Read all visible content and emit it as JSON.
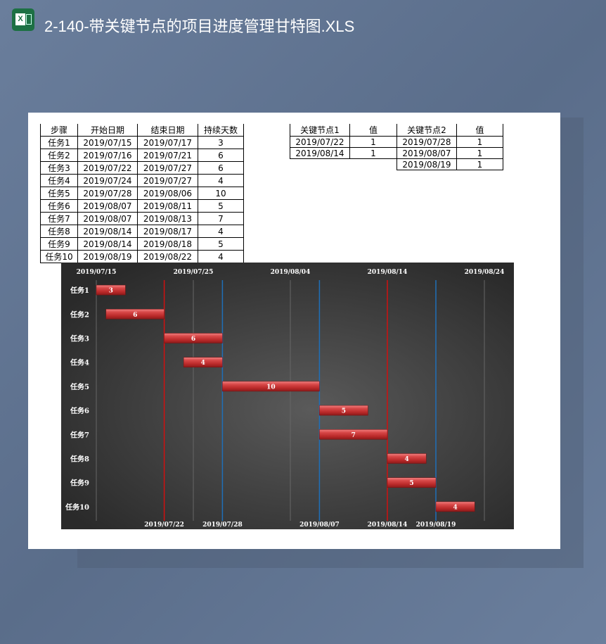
{
  "window": {
    "title": "2-140-带关键节点的项目进度管理甘特图.XLS",
    "app_icon": "excel-icon",
    "app_icon_letter": "X"
  },
  "tasks_table": {
    "headers": [
      "步骤",
      "开始日期",
      "结束日期",
      "持续天数"
    ],
    "rows": [
      [
        "任务1",
        "2019/07/15",
        "2019/07/17",
        "3"
      ],
      [
        "任务2",
        "2019/07/16",
        "2019/07/21",
        "6"
      ],
      [
        "任务3",
        "2019/07/22",
        "2019/07/27",
        "6"
      ],
      [
        "任务4",
        "2019/07/24",
        "2019/07/27",
        "4"
      ],
      [
        "任务5",
        "2019/07/28",
        "2019/08/06",
        "10"
      ],
      [
        "任务6",
        "2019/08/07",
        "2019/08/11",
        "5"
      ],
      [
        "任务7",
        "2019/08/07",
        "2019/08/13",
        "7"
      ],
      [
        "任务8",
        "2019/08/14",
        "2019/08/17",
        "4"
      ],
      [
        "任务9",
        "2019/08/14",
        "2019/08/18",
        "5"
      ],
      [
        "任务10",
        "2019/08/19",
        "2019/08/22",
        "4"
      ]
    ]
  },
  "key_table": {
    "headers": [
      "关键节点1",
      "值",
      "关键节点2",
      "值"
    ],
    "rows": [
      [
        "2019/07/22",
        "1",
        "2019/07/28",
        "1"
      ],
      [
        "2019/08/14",
        "1",
        "2019/08/07",
        "1"
      ],
      [
        "",
        "",
        "2019/08/19",
        "1"
      ]
    ]
  },
  "chart_data": {
    "type": "bar",
    "subtype": "gantt",
    "categories": [
      "任务1",
      "任务2",
      "任务3",
      "任务4",
      "任务5",
      "任务6",
      "任务7",
      "任务8",
      "任务9",
      "任务10"
    ],
    "start": [
      "2019/07/15",
      "2019/07/16",
      "2019/07/22",
      "2019/07/24",
      "2019/07/28",
      "2019/08/07",
      "2019/08/07",
      "2019/08/14",
      "2019/08/14",
      "2019/08/19"
    ],
    "duration": [
      3,
      6,
      6,
      4,
      10,
      5,
      7,
      4,
      5,
      4
    ],
    "x_ticks": [
      "2019/07/15",
      "2019/07/25",
      "2019/08/04",
      "2019/08/14",
      "2019/08/24"
    ],
    "xlim": [
      "2019/07/15",
      "2019/08/24"
    ],
    "key_nodes_1": [
      "2019/07/22",
      "2019/08/14"
    ],
    "key_nodes_2": [
      "2019/07/28",
      "2019/08/07",
      "2019/08/19"
    ],
    "colors": {
      "bar": "#c83232",
      "key_nodes_1": "#d01010",
      "key_nodes_2": "#1f6fb8",
      "background": "#3a3a3a"
    },
    "grid": true,
    "legend": "none"
  }
}
